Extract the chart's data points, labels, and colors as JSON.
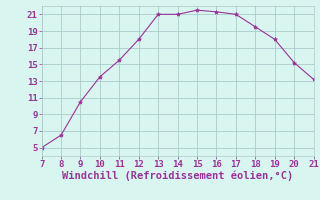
{
  "x": [
    7,
    8,
    9,
    10,
    11,
    12,
    13,
    14,
    15,
    16,
    17,
    18,
    19,
    20,
    21
  ],
  "y": [
    5,
    6.5,
    10.5,
    13.5,
    15.5,
    18,
    21,
    21,
    21.5,
    21.3,
    21,
    19.5,
    18,
    15.2,
    13.2
  ],
  "line_color": "#993399",
  "marker": "*",
  "marker_size": 3,
  "background_color": "#d8f5f0",
  "grid_color": "#aacccc",
  "xlabel": "Windchill (Refroidissement éolien,°C)",
  "xlabel_color": "#993399",
  "tick_color": "#993399",
  "xlim": [
    7,
    21
  ],
  "ylim": [
    4,
    22
  ],
  "xticks": [
    7,
    8,
    9,
    10,
    11,
    12,
    13,
    14,
    15,
    16,
    17,
    18,
    19,
    20,
    21
  ],
  "yticks": [
    5,
    7,
    9,
    11,
    13,
    15,
    17,
    19,
    21
  ],
  "tick_fontsize": 6.5,
  "xlabel_fontsize": 7.5
}
